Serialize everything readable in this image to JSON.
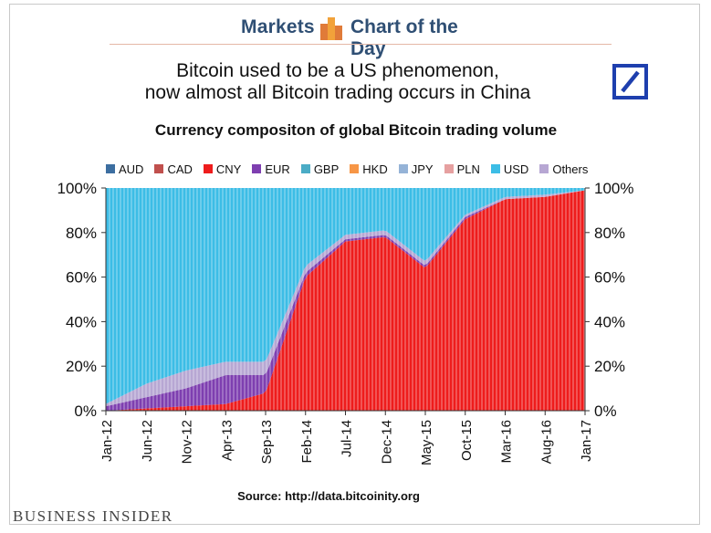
{
  "header": {
    "section": "Markets",
    "feature": "Chart of the Day"
  },
  "title_lines": [
    "Bitcoin used to be a US phenomenon,",
    "now almost all Bitcoin trading occurs in China"
  ],
  "source": "Source: http://data.bitcoinity.org",
  "publisher": "BUSINESS INSIDER",
  "colors": {
    "AUD": "#3c6ea0",
    "CAD": "#c0504d",
    "CNY": "#ee1c1c",
    "EUR": "#7e3fb0",
    "GBP": "#4bacc6",
    "HKD": "#f79646",
    "JPY": "#95b3d7",
    "PLN": "#e6a0a0",
    "USD": "#3cbde6",
    "Others": "#b7a7d3",
    "brand_blue": "#1e3fae",
    "header_blue": "#2f4f74"
  },
  "chart_data": {
    "type": "area",
    "title": "Currency compositon of global Bitcoin trading volume",
    "stacked": "percent",
    "legend": [
      "AUD",
      "CAD",
      "CNY",
      "EUR",
      "GBP",
      "HKD",
      "JPY",
      "PLN",
      "USD",
      "Others"
    ],
    "x_tick_labels": [
      "Jan-12",
      "Jun-12",
      "Nov-12",
      "Apr-13",
      "Sep-13",
      "Feb-14",
      "Jul-14",
      "Dec-14",
      "May-15",
      "Oct-15",
      "Mar-16",
      "Aug-16",
      "Jan-17"
    ],
    "y_tick_labels": [
      "0%",
      "20%",
      "40%",
      "60%",
      "80%",
      "100%"
    ],
    "ylim": [
      0,
      100
    ],
    "y_unit": "%",
    "secondary_y_axis": true,
    "approx_share_by_tick": {
      "x": [
        "Jan-12",
        "Jun-12",
        "Nov-12",
        "Apr-13",
        "Sep-13",
        "Feb-14",
        "Jul-14",
        "Dec-14",
        "May-15",
        "Oct-15",
        "Mar-16",
        "Aug-16",
        "Jan-17"
      ],
      "series": [
        {
          "name": "CNY",
          "values": [
            0,
            1,
            2,
            3,
            8,
            60,
            76,
            78,
            64,
            86,
            95,
            96,
            99
          ]
        },
        {
          "name": "EUR",
          "values": [
            2,
            5,
            8,
            13,
            8,
            2,
            1,
            1,
            1,
            1,
            0,
            0,
            0
          ]
        },
        {
          "name": "Others",
          "values": [
            1,
            6,
            8,
            6,
            6,
            3,
            2,
            2,
            2,
            1,
            1,
            1,
            0
          ]
        },
        {
          "name": "USD",
          "values": [
            97,
            88,
            82,
            78,
            78,
            35,
            21,
            19,
            33,
            12,
            4,
            3,
            1
          ]
        }
      ]
    }
  }
}
